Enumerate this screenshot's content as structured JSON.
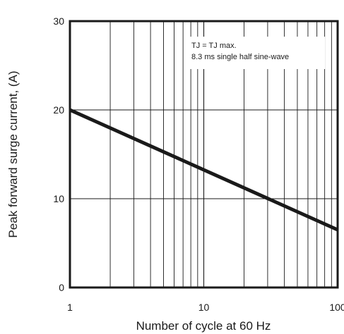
{
  "chart_data": {
    "type": "line",
    "xlabel": "Number of cycle at 60 Hz",
    "ylabel": "Peak forward surge current, (A)",
    "x_scale": "log",
    "xlim": [
      1,
      100
    ],
    "ylim": [
      0,
      30
    ],
    "x_ticks": [
      "1",
      "10",
      "100"
    ],
    "y_ticks": [
      "0",
      "10",
      "20",
      "30"
    ],
    "grid": true,
    "series": [
      {
        "x": [
          1,
          100
        ],
        "y": [
          20,
          6.5
        ]
      }
    ],
    "annotations": [
      {
        "line1": "TJ = TJ max.",
        "line2": "8.3 ms single half sine-wave"
      }
    ]
  }
}
